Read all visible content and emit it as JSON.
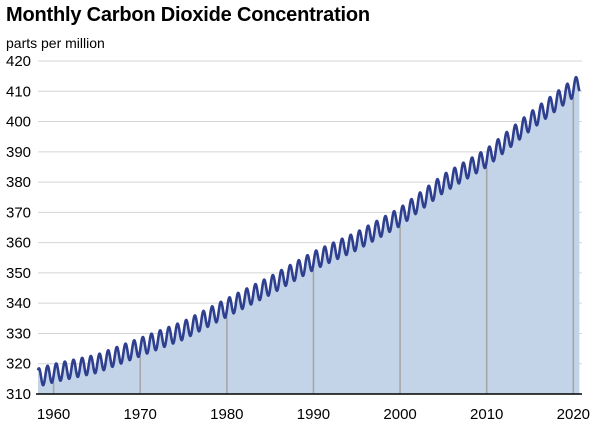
{
  "chart_data": {
    "type": "line",
    "title": "Monthly Carbon Dioxide Concentration",
    "subtitle": "parts per million",
    "xlabel": "",
    "ylabel": "",
    "xlim": [
      1958.2,
      2021.0
    ],
    "ylim": [
      310,
      420
    ],
    "x_ticks": [
      1960,
      1970,
      1980,
      1990,
      2000,
      2010,
      2020
    ],
    "y_ticks": [
      310,
      320,
      330,
      340,
      350,
      360,
      370,
      380,
      390,
      400,
      410,
      420
    ],
    "grid": {
      "horizontal": true,
      "vertical": true
    },
    "area_fill": true,
    "series": [
      {
        "seasonal_amplitude_ppm": 6.0,
        "x": [
          1958.2,
          1960,
          1965,
          1970,
          1975,
          1980,
          1985,
          1990,
          1995,
          2000,
          2005,
          2010,
          2015,
          2020,
          2020.7
        ],
        "trend": [
          315.4,
          316.9,
          320.0,
          325.5,
          331.0,
          338.5,
          345.8,
          354.0,
          360.5,
          368.5,
          379.5,
          388.0,
          400.0,
          411.0,
          412.5
        ]
      }
    ],
    "colors": {
      "line": "#2f3f8f",
      "area": "#c3d4e8",
      "grid": "#d4d4d4",
      "vertical_grid": "#a6a6a6",
      "axis": "#000000"
    }
  }
}
